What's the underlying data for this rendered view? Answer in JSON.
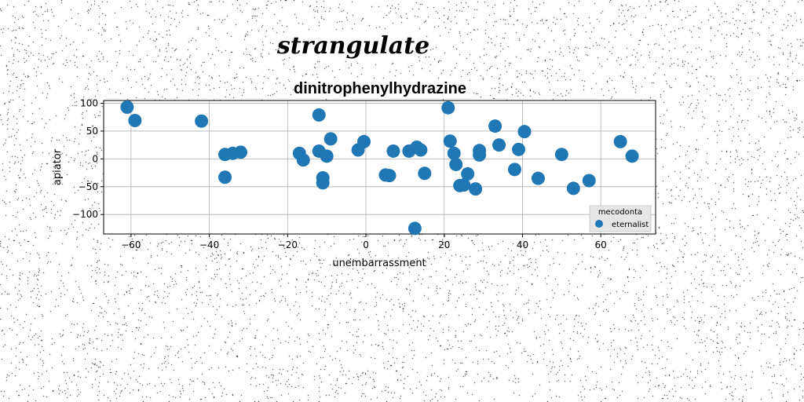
{
  "suptitle": "strangulate",
  "chart_data": {
    "type": "scatter",
    "title": "dinitrophenylhydrazine",
    "xlabel": "unembarrassment",
    "ylabel": "apiator",
    "xlim": [
      -67,
      74
    ],
    "ylim": [
      -135,
      105
    ],
    "xticks": [
      -60,
      -40,
      -20,
      0,
      20,
      40,
      60
    ],
    "yticks": [
      -100,
      -50,
      0,
      50,
      100
    ],
    "grid": true,
    "legend": {
      "title": "mecodonta",
      "placement": "lower-right"
    },
    "series": [
      {
        "name": "eternalist",
        "color": "#1f77b4",
        "points": [
          [
            -61,
            93
          ],
          [
            -59,
            69
          ],
          [
            -42,
            68
          ],
          [
            -36,
            8
          ],
          [
            -36,
            -33
          ],
          [
            -34,
            10
          ],
          [
            -32,
            12
          ],
          [
            -17,
            10
          ],
          [
            -16,
            -2
          ],
          [
            -12,
            79
          ],
          [
            -12,
            14
          ],
          [
            -11,
            -43
          ],
          [
            -11,
            -34
          ],
          [
            -10,
            5
          ],
          [
            -9,
            36
          ],
          [
            -2,
            16
          ],
          [
            -0.5,
            31
          ],
          [
            5,
            -29
          ],
          [
            6,
            -30
          ],
          [
            7,
            14
          ],
          [
            11,
            14
          ],
          [
            13,
            21
          ],
          [
            12.5,
            -125
          ],
          [
            14,
            16
          ],
          [
            15,
            -26
          ],
          [
            21,
            92
          ],
          [
            21.5,
            32
          ],
          [
            22.5,
            10
          ],
          [
            23,
            -10
          ],
          [
            24,
            -48
          ],
          [
            25,
            -47
          ],
          [
            26,
            -27
          ],
          [
            28,
            -54
          ],
          [
            29,
            15
          ],
          [
            29,
            7
          ],
          [
            33,
            59
          ],
          [
            34,
            25
          ],
          [
            38,
            -19
          ],
          [
            39,
            17
          ],
          [
            40.5,
            49
          ],
          [
            44,
            -35
          ],
          [
            50,
            8
          ],
          [
            53,
            -53
          ],
          [
            57,
            -39
          ],
          [
            65,
            31
          ],
          [
            68,
            5
          ]
        ]
      }
    ]
  }
}
